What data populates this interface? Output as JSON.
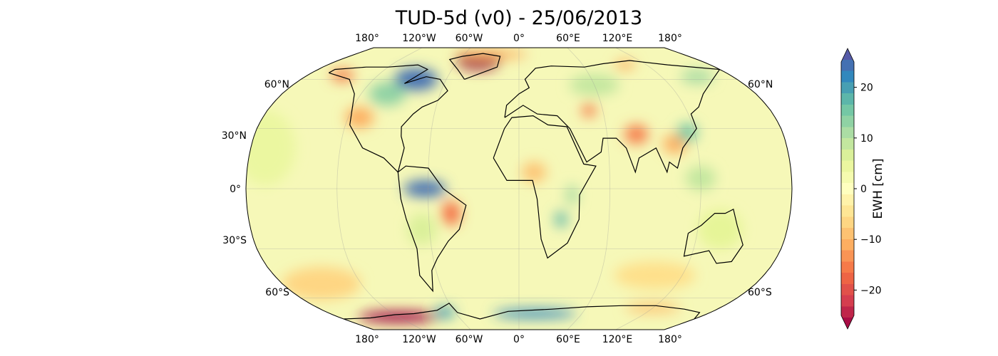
{
  "title": "TUD-5d (v0) - 25/06/2013",
  "map": {
    "projection": "Robinson",
    "lon_labels_top": [
      "180°",
      "120°W",
      "60°W",
      "0°",
      "60°E",
      "120°E",
      "180°"
    ],
    "lon_labels_bottom": [
      "180°",
      "120°W",
      "60°W",
      "0°",
      "60°E",
      "120°E",
      "180°"
    ],
    "lat_labels_left": [
      "60°N",
      "30°N",
      "0°",
      "30°S",
      "60°S"
    ],
    "lat_labels_right": [
      "60°N",
      "60°S"
    ],
    "background_value": 0,
    "anomalies": [
      {
        "lon": -40,
        "lat": 76,
        "value": -30,
        "rlon": 22,
        "rlat": 9
      },
      {
        "lon": -30,
        "lat": 82,
        "value": -10,
        "rlon": 40,
        "rlat": 5
      },
      {
        "lon": -85,
        "lat": 60,
        "value": 22,
        "rlon": 18,
        "rlat": 9
      },
      {
        "lon": -100,
        "lat": 50,
        "value": 12,
        "rlon": 14,
        "rlat": 8
      },
      {
        "lon": -150,
        "lat": 63,
        "value": -14,
        "rlon": 10,
        "rlat": 5
      },
      {
        "lon": -112,
        "lat": 36,
        "value": -10,
        "rlon": 10,
        "rlat": 6
      },
      {
        "lon": -62,
        "lat": 0,
        "value": 22,
        "rlon": 14,
        "rlat": 4
      },
      {
        "lon": -45,
        "lat": -12,
        "value": -15,
        "rlon": 6,
        "rlat": 6
      },
      {
        "lon": -65,
        "lat": -20,
        "value": 6,
        "rlon": 10,
        "rlat": 8
      },
      {
        "lon": -120,
        "lat": -76,
        "value": -30,
        "rlon": 40,
        "rlat": 5
      },
      {
        "lon": -70,
        "lat": -72,
        "value": 18,
        "rlon": 10,
        "rlat": 5
      },
      {
        "lon": 15,
        "lat": -73,
        "value": 20,
        "rlon": 40,
        "rlat": 4
      },
      {
        "lon": 120,
        "lat": -68,
        "value": -8,
        "rlon": 25,
        "rlat": 4
      },
      {
        "lon": 80,
        "lat": 27,
        "value": -14,
        "rlon": 8,
        "rlat": 5
      },
      {
        "lon": 105,
        "lat": 22,
        "value": -10,
        "rlon": 8,
        "rlat": 5
      },
      {
        "lon": 115,
        "lat": 28,
        "value": 14,
        "rlon": 7,
        "rlat": 5
      },
      {
        "lon": 50,
        "lat": 40,
        "value": -14,
        "rlon": 5,
        "rlat": 4
      },
      {
        "lon": 60,
        "lat": 56,
        "value": 8,
        "rlon": 20,
        "rlat": 8
      },
      {
        "lon": 150,
        "lat": 62,
        "value": 10,
        "rlon": 14,
        "rlat": 6
      },
      {
        "lon": 100,
        "lat": 72,
        "value": -10,
        "rlon": 10,
        "rlat": 4
      },
      {
        "lon": 28,
        "lat": -15,
        "value": 16,
        "rlon": 4,
        "rlat": 4
      },
      {
        "lon": 35,
        "lat": -3,
        "value": 10,
        "rlon": 4,
        "rlat": 5
      },
      {
        "lon": 10,
        "lat": 8,
        "value": -8,
        "rlon": 8,
        "rlat": 5
      },
      {
        "lon": -150,
        "lat": -50,
        "value": -6,
        "rlon": 30,
        "rlat": 10
      },
      {
        "lon": 100,
        "lat": -45,
        "value": -5,
        "rlon": 30,
        "rlat": 8
      },
      {
        "lon": 135,
        "lat": -20,
        "value": 5,
        "rlon": 15,
        "rlat": 10
      },
      {
        "lon": -170,
        "lat": 20,
        "value": 4,
        "rlon": 20,
        "rlat": 20
      },
      {
        "lon": 120,
        "lat": 5,
        "value": 8,
        "rlon": 10,
        "rlat": 6
      }
    ]
  },
  "colorbar": {
    "label": "EWH [cm]",
    "min": -25,
    "max": 25,
    "ticks": [
      "20",
      "10",
      "0",
      "−10",
      "−20"
    ],
    "tick_values": [
      20,
      10,
      0,
      -10,
      -20
    ],
    "colormap": [
      "#9e0142",
      "#d53e4f",
      "#f46d43",
      "#fdae61",
      "#fee08b",
      "#ffffbf",
      "#e6f598",
      "#abdda4",
      "#66c2a5",
      "#3288bd",
      "#5e4fa2"
    ]
  }
}
